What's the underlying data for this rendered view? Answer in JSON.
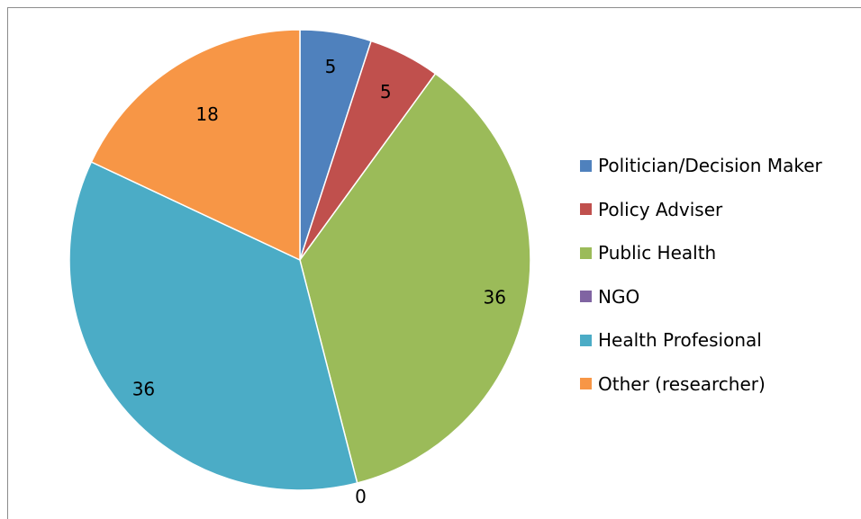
{
  "chart_data": {
    "type": "pie",
    "title": "",
    "categories": [
      "Politician/Decision Maker",
      "Policy Adviser",
      "Public Health",
      "NGO",
      "Health Profesional",
      "Other (researcher)"
    ],
    "values": [
      5,
      5,
      36,
      0,
      36,
      18
    ],
    "labels": [
      "5",
      "5",
      "36",
      "0",
      "36",
      "18"
    ],
    "colors": [
      "#4f81bd",
      "#c0504d",
      "#9bbb59",
      "#8064a2",
      "#4bacc6",
      "#f79646"
    ],
    "legend_position": "right",
    "start_angle": "12 o'clock",
    "direction": "clockwise"
  }
}
